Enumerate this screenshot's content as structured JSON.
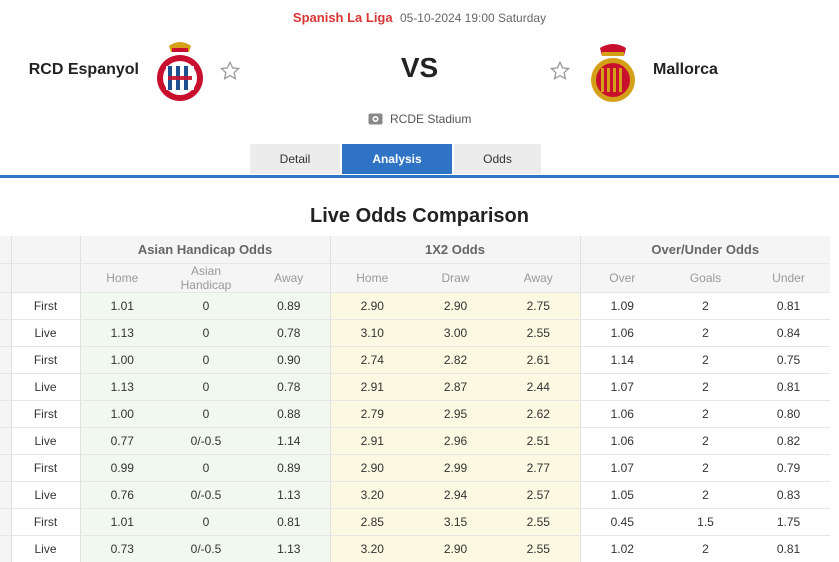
{
  "match": {
    "league": "Spanish La Liga",
    "datetime": "05-10-2024 19:00 Saturday",
    "home_team": "RCD Espanyol",
    "away_team": "Mallorca",
    "vs": "VS",
    "stadium": "RCDE Stadium"
  },
  "tabs": [
    {
      "label": "Detail",
      "active": false
    },
    {
      "label": "Analysis",
      "active": true
    },
    {
      "label": "Odds",
      "active": false
    }
  ],
  "colors": {
    "league_red": "#d93636",
    "tab_blue": "#2f74c4",
    "asian_bg": "#f1f8ee",
    "x12_bg": "#fbf9e1"
  },
  "section_title": "Live Odds Comparison",
  "table": {
    "groups": [
      "Asian Handicap Odds",
      "1X2 Odds",
      "Over/Under Odds"
    ],
    "subheaders": [
      "Home",
      "Asian Handicap",
      "Away",
      "Home",
      "Draw",
      "Away",
      "Over",
      "Goals",
      "Under"
    ],
    "rows": [
      {
        "type": "First",
        "ah": [
          "1.01",
          "0",
          "0.89"
        ],
        "x12": [
          "2.90",
          "2.90",
          "2.75"
        ],
        "ou": [
          "1.09",
          "2",
          "0.81"
        ]
      },
      {
        "type": "Live",
        "ah": [
          "1.13",
          "0",
          "0.78"
        ],
        "x12": [
          "3.10",
          "3.00",
          "2.55"
        ],
        "ou": [
          "1.06",
          "2",
          "0.84"
        ]
      },
      {
        "type": "First",
        "ah": [
          "1.00",
          "0",
          "0.90"
        ],
        "x12": [
          "2.74",
          "2.82",
          "2.61"
        ],
        "ou": [
          "1.14",
          "2",
          "0.75"
        ]
      },
      {
        "type": "Live",
        "ah": [
          "1.13",
          "0",
          "0.78"
        ],
        "x12": [
          "2.91",
          "2.87",
          "2.44"
        ],
        "ou": [
          "1.07",
          "2",
          "0.81"
        ]
      },
      {
        "type": "First",
        "ah": [
          "1.00",
          "0",
          "0.88"
        ],
        "x12": [
          "2.79",
          "2.95",
          "2.62"
        ],
        "ou": [
          "1.06",
          "2",
          "0.80"
        ]
      },
      {
        "type": "Live",
        "ah": [
          "0.77",
          "0/-0.5",
          "1.14"
        ],
        "x12": [
          "2.91",
          "2.96",
          "2.51"
        ],
        "ou": [
          "1.06",
          "2",
          "0.82"
        ]
      },
      {
        "type": "First",
        "ah": [
          "0.99",
          "0",
          "0.89"
        ],
        "x12": [
          "2.90",
          "2.99",
          "2.77"
        ],
        "ou": [
          "1.07",
          "2",
          "0.79"
        ]
      },
      {
        "type": "Live",
        "ah": [
          "0.76",
          "0/-0.5",
          "1.13"
        ],
        "x12": [
          "3.20",
          "2.94",
          "2.57"
        ],
        "ou": [
          "1.05",
          "2",
          "0.83"
        ]
      },
      {
        "type": "First",
        "ah": [
          "1.01",
          "0",
          "0.81"
        ],
        "x12": [
          "2.85",
          "3.15",
          "2.55"
        ],
        "ou": [
          "0.45",
          "1.5",
          "1.75"
        ]
      },
      {
        "type": "Live",
        "ah": [
          "0.73",
          "0/-0.5",
          "1.13"
        ],
        "x12": [
          "3.20",
          "2.90",
          "2.55"
        ],
        "ou": [
          "1.02",
          "2",
          "0.81"
        ]
      }
    ]
  }
}
